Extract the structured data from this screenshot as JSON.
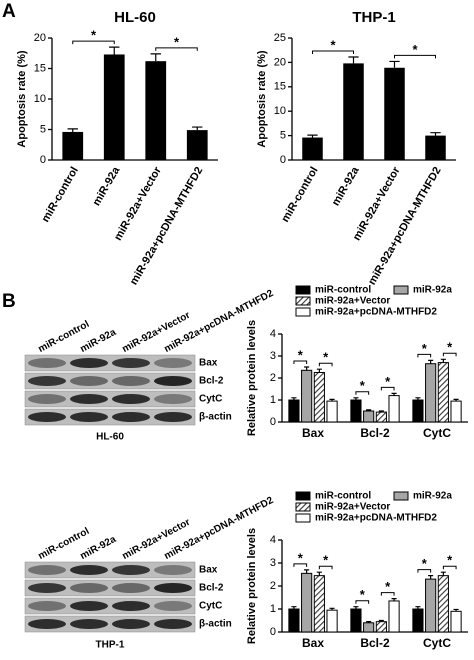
{
  "panels": [
    "A",
    "B"
  ],
  "blots": [
    {
      "lanes": [
        "miR-control",
        "miR-92a",
        "miR-92a+Vector",
        "miR-92a+pcDNA-MTHFD2"
      ],
      "proteins": [
        "Bax",
        "Bcl-2",
        "CytC",
        "β-actin"
      ],
      "cell": "HL-60"
    },
    {
      "lanes": [
        "miR-control",
        "miR-92a",
        "miR-92a+Vector",
        "miR-92a+pcDNA-MTHFD2"
      ],
      "proteins": [
        "Bax",
        "Bcl-2",
        "CytC",
        "β-actin"
      ],
      "cell": "THP-1"
    }
  ],
  "chart_data": [
    {
      "type": "bar",
      "title": "HL-60",
      "y_label": "Apoptosis rate (%)",
      "categories": [
        "miR-control",
        "miR-92a",
        "miR-92a+Vector",
        "miR-92a+pcDNA-MTHFD2"
      ],
      "values": [
        4.6,
        17.3,
        16.2,
        4.9
      ],
      "errors": [
        0.5,
        1.2,
        1.2,
        0.5
      ],
      "color": "#000000",
      "ylim": [
        0,
        20
      ],
      "yticks": [
        0,
        5,
        10,
        15,
        20
      ],
      "annotations": [
        {
          "text": "*",
          "from": 0,
          "to": 1
        },
        {
          "text": "*",
          "from": 2,
          "to": 3
        }
      ]
    },
    {
      "type": "bar",
      "title": "THP-1",
      "y_label": "Apoptosis rate (%)",
      "categories": [
        "miR-control",
        "miR-92a",
        "miR-92a+Vector",
        "miR-92a+pcDNA-MTHFD2"
      ],
      "values": [
        4.6,
        19.8,
        18.9,
        5.0
      ],
      "errors": [
        0.5,
        1.3,
        1.3,
        0.6
      ],
      "color": "#000000",
      "ylim": [
        0,
        25
      ],
      "yticks": [
        0,
        5,
        10,
        15,
        20,
        25
      ],
      "annotations": [
        {
          "text": "*",
          "from": 0,
          "to": 1
        },
        {
          "text": "*",
          "from": 2,
          "to": 3
        }
      ]
    },
    {
      "type": "bar",
      "y_label": "Relative protein levels",
      "categories": [
        "Bax",
        "Bcl-2",
        "CytC"
      ],
      "series": [
        {
          "name": "miR-control",
          "color": "#000000",
          "values": [
            1.0,
            1.0,
            1.0
          ],
          "errors": [
            0.1,
            0.1,
            0.1
          ]
        },
        {
          "name": "miR-92a",
          "color": "#a6a6a6",
          "values": [
            2.35,
            0.5,
            2.65
          ],
          "errors": [
            0.15,
            0.05,
            0.15
          ]
        },
        {
          "name": "miR-92a+Vector",
          "color": "#444444",
          "pattern": "hatch",
          "values": [
            2.25,
            0.45,
            2.7
          ],
          "errors": [
            0.15,
            0.05,
            0.15
          ]
        },
        {
          "name": "miR-92a+pcDNA-MTHFD2",
          "color": "#ffffff",
          "values": [
            0.95,
            1.2,
            0.95
          ],
          "errors": [
            0.08,
            0.1,
            0.08
          ]
        }
      ],
      "ylim": [
        0,
        4
      ],
      "yticks": [
        0,
        1,
        2,
        3,
        4
      ],
      "legend": "top",
      "annotations": [
        {
          "text": "*",
          "category": 0,
          "from": 0,
          "to": 1
        },
        {
          "text": "*",
          "category": 0,
          "from": 2,
          "to": 3
        },
        {
          "text": "*",
          "category": 1,
          "from": 0,
          "to": 1
        },
        {
          "text": "*",
          "category": 1,
          "from": 2,
          "to": 3
        },
        {
          "text": "*",
          "category": 2,
          "from": 0,
          "to": 1
        },
        {
          "text": "*",
          "category": 2,
          "from": 2,
          "to": 3
        }
      ]
    },
    {
      "type": "bar",
      "y_label": "Relative protein levels",
      "categories": [
        "Bax",
        "Bcl-2",
        "CytC"
      ],
      "series": [
        {
          "name": "miR-control",
          "color": "#000000",
          "values": [
            1.0,
            1.0,
            1.0
          ],
          "errors": [
            0.1,
            0.1,
            0.1
          ]
        },
        {
          "name": "miR-92a",
          "color": "#a6a6a6",
          "values": [
            2.55,
            0.4,
            2.3
          ],
          "errors": [
            0.15,
            0.05,
            0.15
          ]
        },
        {
          "name": "miR-92a+Vector",
          "color": "#444444",
          "pattern": "hatch",
          "values": [
            2.45,
            0.45,
            2.45
          ],
          "errors": [
            0.15,
            0.05,
            0.15
          ]
        },
        {
          "name": "miR-92a+pcDNA-MTHFD2",
          "color": "#ffffff",
          "values": [
            0.95,
            1.35,
            0.9
          ],
          "errors": [
            0.08,
            0.1,
            0.08
          ]
        }
      ],
      "ylim": [
        0,
        4
      ],
      "yticks": [
        0,
        1,
        2,
        3,
        4
      ],
      "legend": "top",
      "annotations": [
        {
          "text": "*",
          "category": 0,
          "from": 0,
          "to": 1
        },
        {
          "text": "*",
          "category": 0,
          "from": 2,
          "to": 3
        },
        {
          "text": "*",
          "category": 1,
          "from": 0,
          "to": 1
        },
        {
          "text": "*",
          "category": 1,
          "from": 2,
          "to": 3
        },
        {
          "text": "*",
          "category": 2,
          "from": 0,
          "to": 1
        },
        {
          "text": "*",
          "category": 2,
          "from": 2,
          "to": 3
        }
      ]
    }
  ]
}
